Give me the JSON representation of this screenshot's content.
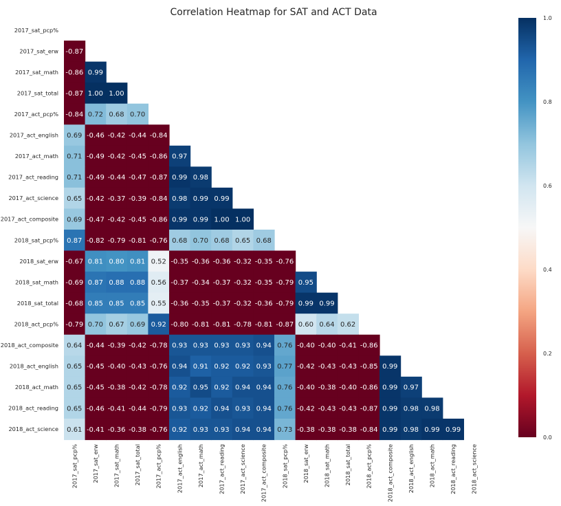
{
  "chart_data": {
    "type": "heatmap",
    "title": "Correlation Heatmap for SAT and ACT Data",
    "mask": "upper-triangle-including-diagonal",
    "colormap": "RdBu",
    "vmin": 0.0,
    "vmax": 1.0,
    "colorbar_ticks": [
      "0.0",
      "0.2",
      "0.4",
      "0.6",
      "0.8",
      "1.0"
    ],
    "labels": [
      "2017_sat_pcp%",
      "2017_sat_erw",
      "2017_sat_math",
      "2017_sat_total",
      "2017_act_pcp%",
      "2017_act_english",
      "2017_act_math",
      "2017_act_reading",
      "2017_act_science",
      "2017_act_composite",
      "2018_sat_pcp%",
      "2018_sat_erw",
      "2018_sat_math",
      "2018_sat_total",
      "2018_act_pcp%",
      "2018_act_composite",
      "2018_act_english",
      "2018_act_math",
      "2018_act_reading",
      "2018_act_science"
    ],
    "matrix": [
      [],
      [
        -0.87
      ],
      [
        -0.86,
        0.99
      ],
      [
        -0.87,
        1.0,
        1.0
      ],
      [
        -0.84,
        0.72,
        0.68,
        0.7
      ],
      [
        0.69,
        -0.46,
        -0.42,
        -0.44,
        -0.84
      ],
      [
        0.71,
        -0.49,
        -0.42,
        -0.45,
        -0.86,
        0.97
      ],
      [
        0.71,
        -0.49,
        -0.44,
        -0.47,
        -0.87,
        0.99,
        0.98
      ],
      [
        0.65,
        -0.42,
        -0.37,
        -0.39,
        -0.84,
        0.98,
        0.99,
        0.99
      ],
      [
        0.69,
        -0.47,
        -0.42,
        -0.45,
        -0.86,
        0.99,
        0.99,
        1.0,
        1.0
      ],
      [
        0.87,
        -0.82,
        -0.79,
        -0.81,
        -0.76,
        0.68,
        0.7,
        0.68,
        0.65,
        0.68
      ],
      [
        -0.67,
        0.81,
        0.8,
        0.81,
        0.52,
        -0.35,
        -0.36,
        -0.36,
        -0.32,
        -0.35,
        -0.76
      ],
      [
        -0.69,
        0.87,
        0.88,
        0.88,
        0.56,
        -0.37,
        -0.34,
        -0.37,
        -0.32,
        -0.35,
        -0.79,
        0.95
      ],
      [
        -0.68,
        0.85,
        0.85,
        0.85,
        0.55,
        -0.36,
        -0.35,
        -0.37,
        -0.32,
        -0.36,
        -0.79,
        0.99,
        0.99
      ],
      [
        -0.79,
        0.7,
        0.67,
        0.69,
        0.92,
        -0.8,
        -0.81,
        -0.81,
        -0.78,
        -0.81,
        -0.87,
        0.6,
        0.64,
        0.62
      ],
      [
        0.64,
        -0.44,
        -0.39,
        -0.42,
        -0.78,
        0.93,
        0.93,
        0.93,
        0.93,
        0.94,
        0.76,
        -0.4,
        -0.4,
        -0.41,
        -0.86
      ],
      [
        0.65,
        -0.45,
        -0.4,
        -0.43,
        -0.76,
        0.94,
        0.91,
        0.92,
        0.92,
        0.93,
        0.77,
        -0.42,
        -0.43,
        -0.43,
        -0.85,
        0.99
      ],
      [
        0.65,
        -0.45,
        -0.38,
        -0.42,
        -0.78,
        0.92,
        0.95,
        0.92,
        0.94,
        0.94,
        0.76,
        -0.4,
        -0.38,
        -0.4,
        -0.86,
        0.99,
        0.97
      ],
      [
        0.65,
        -0.46,
        -0.41,
        -0.44,
        -0.79,
        0.93,
        0.92,
        0.94,
        0.93,
        0.94,
        0.76,
        -0.42,
        -0.43,
        -0.43,
        -0.87,
        0.99,
        0.98,
        0.98
      ],
      [
        0.61,
        -0.41,
        -0.36,
        -0.38,
        -0.76,
        0.92,
        0.93,
        0.93,
        0.94,
        0.94,
        0.73,
        -0.38,
        -0.38,
        -0.38,
        -0.84,
        0.99,
        0.98,
        0.99,
        0.99
      ]
    ]
  }
}
